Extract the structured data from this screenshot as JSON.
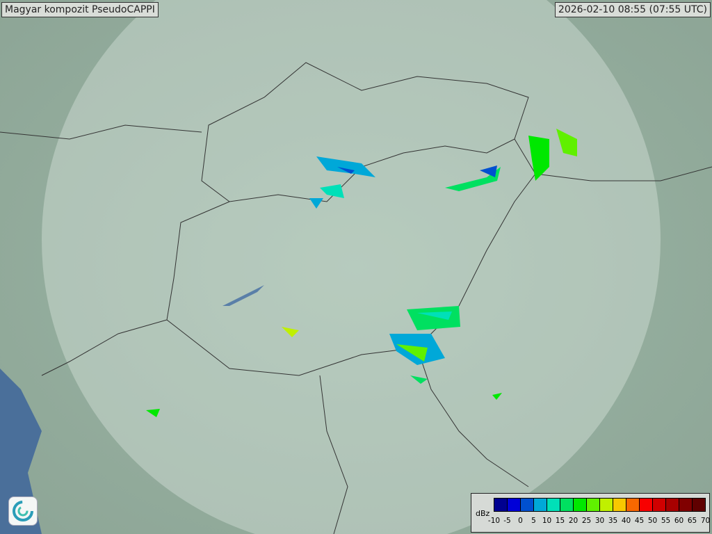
{
  "header": {
    "title": "Magyar kompozit  PseudoCAPPI",
    "timestamp": "2026-02-10 08:55 (07:55 UTC)"
  },
  "legend": {
    "unit": "dBz",
    "ticks": [
      "-10",
      "-5",
      "0",
      "5",
      "10",
      "15",
      "20",
      "25",
      "30",
      "35",
      "40",
      "45",
      "50",
      "55",
      "60",
      "65",
      "70"
    ],
    "colors": [
      "#000090",
      "#0000d8",
      "#0050d0",
      "#00a8d8",
      "#00e0b8",
      "#00e060",
      "#00e800",
      "#60f000",
      "#c0f000",
      "#f8c800",
      "#f86800",
      "#f80000",
      "#d00000",
      "#a80000",
      "#800000",
      "#600000"
    ]
  },
  "logo": {
    "icon": "met-service-swirl-logo"
  }
}
